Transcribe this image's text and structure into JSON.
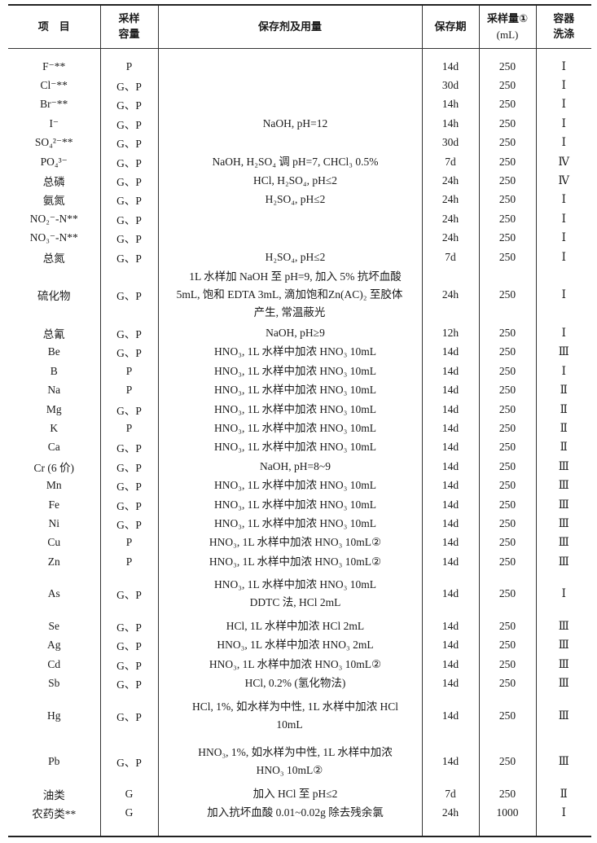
{
  "table": {
    "headers": {
      "item": "项　目",
      "container_1": "采样",
      "container_2": "容量",
      "preservative": "保存剂及用量",
      "period": "保存期",
      "volume_1": "采样量①",
      "volume_2": "(mL)",
      "wash_1": "容器",
      "wash_2": "洗涤"
    },
    "rows": [
      {
        "item": "F⁻**",
        "container": "P",
        "preservative": [
          ""
        ],
        "period": "14d",
        "volume": "250",
        "wash": "Ⅰ"
      },
      {
        "item": "Cl⁻**",
        "container": "G、P",
        "preservative": [
          ""
        ],
        "period": "30d",
        "volume": "250",
        "wash": "Ⅰ"
      },
      {
        "item": "Br⁻**",
        "container": "G、P",
        "preservative": [
          ""
        ],
        "period": "14h",
        "volume": "250",
        "wash": "Ⅰ"
      },
      {
        "item": "I⁻",
        "container": "G、P",
        "preservative": [
          "NaOH, pH=12"
        ],
        "period": "14h",
        "volume": "250",
        "wash": "Ⅰ"
      },
      {
        "item": "SO₄²⁻**",
        "container": "G、P",
        "preservative": [
          ""
        ],
        "period": "30d",
        "volume": "250",
        "wash": "Ⅰ"
      },
      {
        "item": "PO₄³⁻",
        "container": "G、P",
        "preservative": [
          "NaOH, H₂SO₄ 调 pH=7, CHCl₃ 0.5%"
        ],
        "period": "7d",
        "volume": "250",
        "wash": "Ⅳ"
      },
      {
        "item": "总磷",
        "container": "G、P",
        "preservative": [
          "HCl, H₂SO₄, pH≤2"
        ],
        "period": "24h",
        "volume": "250",
        "wash": "Ⅳ"
      },
      {
        "item": "氨氮",
        "container": "G、P",
        "preservative": [
          "H₂SO₄, pH≤2"
        ],
        "period": "24h",
        "volume": "250",
        "wash": "Ⅰ"
      },
      {
        "item": "NO₂⁻-N**",
        "container": "G、P",
        "preservative": [
          ""
        ],
        "period": "24h",
        "volume": "250",
        "wash": "Ⅰ"
      },
      {
        "item": "NO₃⁻-N**",
        "container": "G、P",
        "preservative": [
          ""
        ],
        "period": "24h",
        "volume": "250",
        "wash": "Ⅰ"
      },
      {
        "item": "总氮",
        "container": "G、P",
        "preservative": [
          "H₂SO₄, pH≤2"
        ],
        "period": "7d",
        "volume": "250",
        "wash": "Ⅰ"
      },
      {
        "item": "硫化物",
        "container": "G、P",
        "preservative": [
          "1L 水样加 NaOH 至 pH=9, 加入 5% 抗坏血酸",
          "5mL, 饱和 EDTA 3mL, 滴加饱和Zn(AC)₂ 至胶体",
          "产生, 常温蔽光"
        ],
        "period": "24h",
        "volume": "250",
        "wash": "Ⅰ"
      },
      {
        "item": "总氰",
        "container": "G、P",
        "preservative": [
          "NaOH, pH≥9"
        ],
        "period": "12h",
        "volume": "250",
        "wash": "Ⅰ"
      },
      {
        "item": "Be",
        "container": "G、P",
        "preservative": [
          "HNO₃, 1L 水样中加浓 HNO₃ 10mL"
        ],
        "period": "14d",
        "volume": "250",
        "wash": "Ⅲ"
      },
      {
        "item": "B",
        "container": "P",
        "preservative": [
          "HNO₃, 1L 水样中加浓 HNO₃ 10mL"
        ],
        "period": "14d",
        "volume": "250",
        "wash": "Ⅰ"
      },
      {
        "item": "Na",
        "container": "P",
        "preservative": [
          "HNO₃, 1L 水样中加浓 HNO₃ 10mL"
        ],
        "period": "14d",
        "volume": "250",
        "wash": "Ⅱ"
      },
      {
        "item": "Mg",
        "container": "G、P",
        "preservative": [
          "HNO₃, 1L 水样中加浓 HNO₃ 10mL"
        ],
        "period": "14d",
        "volume": "250",
        "wash": "Ⅱ"
      },
      {
        "item": "K",
        "container": "P",
        "preservative": [
          "HNO₃, 1L 水样中加浓 HNO₃ 10mL"
        ],
        "period": "14d",
        "volume": "250",
        "wash": "Ⅱ"
      },
      {
        "item": "Ca",
        "container": "G、P",
        "preservative": [
          "HNO₃, 1L 水样中加浓 HNO₃ 10mL"
        ],
        "period": "14d",
        "volume": "250",
        "wash": "Ⅱ"
      },
      {
        "item": "Cr (6 价)",
        "container": "G、P",
        "preservative": [
          "NaOH, pH=8~9"
        ],
        "period": "14d",
        "volume": "250",
        "wash": "Ⅲ"
      },
      {
        "item": "Mn",
        "container": "G、P",
        "preservative": [
          "HNO₃, 1L 水样中加浓 HNO₃ 10mL"
        ],
        "period": "14d",
        "volume": "250",
        "wash": "Ⅲ"
      },
      {
        "item": "Fe",
        "container": "G、P",
        "preservative": [
          "HNO₃, 1L 水样中加浓 HNO₃ 10mL"
        ],
        "period": "14d",
        "volume": "250",
        "wash": "Ⅲ"
      },
      {
        "item": "Ni",
        "container": "G、P",
        "preservative": [
          "HNO₃, 1L 水样中加浓 HNO₃ 10mL"
        ],
        "period": "14d",
        "volume": "250",
        "wash": "Ⅲ"
      },
      {
        "item": "Cu",
        "container": "P",
        "preservative": [
          "HNO₃, 1L 水样中加浓 HNO₃ 10mL②"
        ],
        "period": "14d",
        "volume": "250",
        "wash": "Ⅲ"
      },
      {
        "item": "Zn",
        "container": "P",
        "preservative": [
          "HNO₃, 1L 水样中加浓 HNO₃ 10mL②"
        ],
        "period": "14d",
        "volume": "250",
        "wash": "Ⅲ"
      },
      {
        "item": "As",
        "container": "G、P",
        "preservative": [
          "HNO₃, 1L 水样中加浓 HNO₃ 10mL",
          "DDTC 法, HCl 2mL"
        ],
        "period": "14d",
        "volume": "250",
        "wash": "Ⅰ",
        "both_indented": true
      },
      {
        "item": "Se",
        "container": "G、P",
        "preservative": [
          "HCl, 1L 水样中加浓 HCl 2mL"
        ],
        "period": "14d",
        "volume": "250",
        "wash": "Ⅲ"
      },
      {
        "item": "Ag",
        "container": "G、P",
        "preservative": [
          "HNO₃, 1L 水样中加浓 HNO₃ 2mL"
        ],
        "period": "14d",
        "volume": "250",
        "wash": "Ⅲ"
      },
      {
        "item": "Cd",
        "container": "G、P",
        "preservative": [
          "HNO₃, 1L 水样中加浓 HNO₃ 10mL②"
        ],
        "period": "14d",
        "volume": "250",
        "wash": "Ⅲ"
      },
      {
        "item": "Sb",
        "container": "G、P",
        "preservative": [
          "HCl, 0.2% (氢化物法)"
        ],
        "period": "14d",
        "volume": "250",
        "wash": "Ⅲ"
      },
      {
        "item": "Hg",
        "container": "G、P",
        "preservative": [
          "HCl, 1%, 如水样为中性, 1L 水样中加浓 HCl",
          "10mL"
        ],
        "period": "14d",
        "volume": "250",
        "wash": "Ⅲ"
      },
      {
        "item": "Pb",
        "container": "G、P",
        "preservative": [
          "HNO₃, 1%, 如水样为中性, 1L 水样中加浓",
          "HNO₃ 10mL②"
        ],
        "period": "14d",
        "volume": "250",
        "wash": "Ⅲ"
      },
      {
        "item": "油类",
        "container": "G",
        "preservative": [
          "加入 HCl 至 pH≤2"
        ],
        "period": "7d",
        "volume": "250",
        "wash": "Ⅱ"
      },
      {
        "item": "农药类**",
        "container": "G",
        "preservative": [
          "加入抗坏血酸 0.01~0.02g 除去残余氯"
        ],
        "period": "24h",
        "volume": "1000",
        "wash": "Ⅰ"
      }
    ]
  }
}
